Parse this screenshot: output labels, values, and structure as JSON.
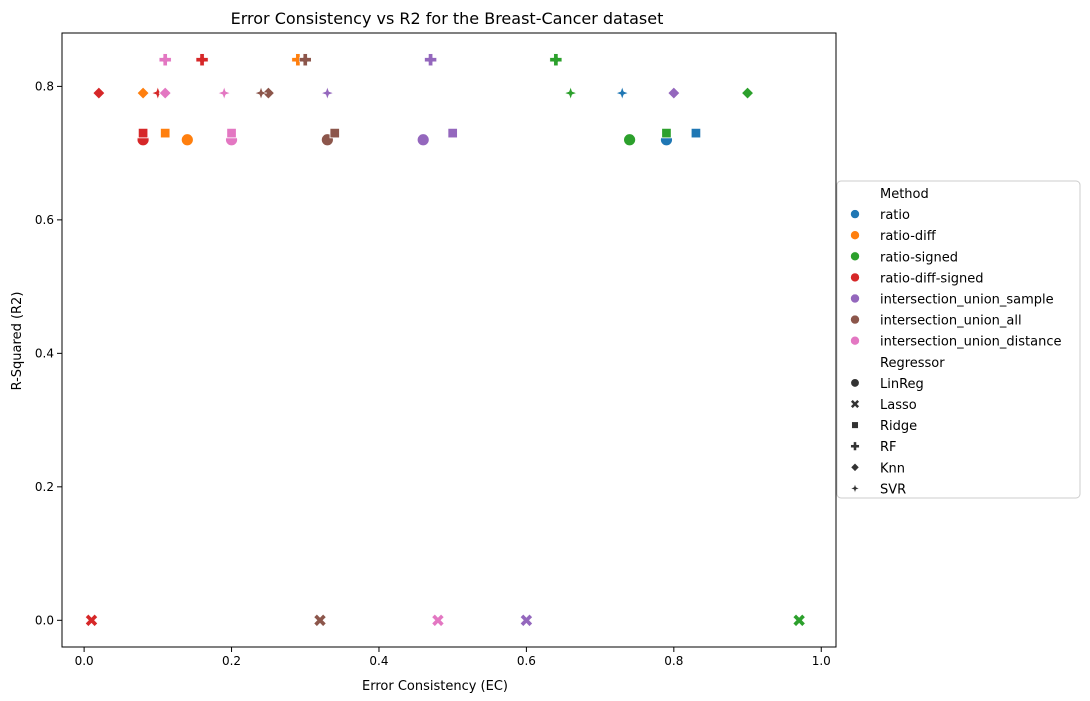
{
  "chart_data": {
    "type": "scatter",
    "title": "Error Consistency vs R2 for the Breast-Cancer dataset",
    "xlabel": "Error Consistency (EC)",
    "ylabel": "R-Squared (R2)",
    "xlim": [
      -0.03,
      1.02
    ],
    "ylim": [
      -0.04,
      0.88
    ],
    "xticks": [
      0.0,
      0.2,
      0.4,
      0.6,
      0.8,
      1.0
    ],
    "xtick_labels": [
      "0.0",
      "0.2",
      "0.4",
      "0.6",
      "0.8",
      "1.0"
    ],
    "yticks": [
      0.0,
      0.2,
      0.4,
      0.6,
      0.8
    ],
    "ytick_labels": [
      "0.0",
      "0.2",
      "0.4",
      "0.6",
      "0.8"
    ],
    "grid": false,
    "legend_position": "right-outside",
    "legend": {
      "method_title": "Method",
      "methods": [
        {
          "name": "ratio",
          "color": "#1f77b4"
        },
        {
          "name": "ratio-diff",
          "color": "#ff7f0e"
        },
        {
          "name": "ratio-signed",
          "color": "#2ca02c"
        },
        {
          "name": "ratio-diff-signed",
          "color": "#d62728"
        },
        {
          "name": "intersection_union_sample",
          "color": "#9467bd"
        },
        {
          "name": "intersection_union_all",
          "color": "#8c564b"
        },
        {
          "name": "intersection_union_distance",
          "color": "#e377c2"
        }
      ],
      "regressor_title": "Regressor",
      "regressors": [
        {
          "name": "LinReg",
          "marker": "circle"
        },
        {
          "name": "Lasso",
          "marker": "x"
        },
        {
          "name": "Ridge",
          "marker": "square"
        },
        {
          "name": "RF",
          "marker": "plus"
        },
        {
          "name": "Knn",
          "marker": "diamond"
        },
        {
          "name": "SVR",
          "marker": "star"
        }
      ]
    },
    "points": [
      {
        "method": "ratio",
        "regressor": "LinReg",
        "x": 0.79,
        "y": 0.72
      },
      {
        "method": "ratio",
        "regressor": "Lasso",
        "x": 0.6,
        "y": 0.0
      },
      {
        "method": "ratio",
        "regressor": "Ridge",
        "x": 0.83,
        "y": 0.73
      },
      {
        "method": "ratio",
        "regressor": "RF",
        "x": 0.3,
        "y": 0.84
      },
      {
        "method": "ratio",
        "regressor": "Knn",
        "x": 0.8,
        "y": 0.79
      },
      {
        "method": "ratio",
        "regressor": "SVR",
        "x": 0.73,
        "y": 0.79
      },
      {
        "method": "ratio-diff",
        "regressor": "LinReg",
        "x": 0.14,
        "y": 0.72
      },
      {
        "method": "ratio-diff",
        "regressor": "Lasso",
        "x": 0.01,
        "y": 0.0
      },
      {
        "method": "ratio-diff",
        "regressor": "Ridge",
        "x": 0.11,
        "y": 0.73
      },
      {
        "method": "ratio-diff",
        "regressor": "RF",
        "x": 0.29,
        "y": 0.84
      },
      {
        "method": "ratio-diff",
        "regressor": "Knn",
        "x": 0.08,
        "y": 0.79
      },
      {
        "method": "ratio-diff",
        "regressor": "SVR",
        "x": 0.1,
        "y": 0.79
      },
      {
        "method": "ratio-signed",
        "regressor": "LinReg",
        "x": 0.74,
        "y": 0.72
      },
      {
        "method": "ratio-signed",
        "regressor": "Lasso",
        "x": 0.97,
        "y": 0.0
      },
      {
        "method": "ratio-signed",
        "regressor": "Ridge",
        "x": 0.79,
        "y": 0.73
      },
      {
        "method": "ratio-signed",
        "regressor": "RF",
        "x": 0.64,
        "y": 0.84
      },
      {
        "method": "ratio-signed",
        "regressor": "Knn",
        "x": 0.9,
        "y": 0.79
      },
      {
        "method": "ratio-signed",
        "regressor": "SVR",
        "x": 0.66,
        "y": 0.79
      },
      {
        "method": "ratio-diff-signed",
        "regressor": "LinReg",
        "x": 0.08,
        "y": 0.72
      },
      {
        "method": "ratio-diff-signed",
        "regressor": "Lasso",
        "x": 0.01,
        "y": 0.0
      },
      {
        "method": "ratio-diff-signed",
        "regressor": "Ridge",
        "x": 0.08,
        "y": 0.73
      },
      {
        "method": "ratio-diff-signed",
        "regressor": "RF",
        "x": 0.16,
        "y": 0.84
      },
      {
        "method": "ratio-diff-signed",
        "regressor": "Knn",
        "x": 0.02,
        "y": 0.79
      },
      {
        "method": "ratio-diff-signed",
        "regressor": "SVR",
        "x": 0.1,
        "y": 0.79
      },
      {
        "method": "intersection_union_sample",
        "regressor": "LinReg",
        "x": 0.46,
        "y": 0.72
      },
      {
        "method": "intersection_union_sample",
        "regressor": "Lasso",
        "x": 0.6,
        "y": 0.0
      },
      {
        "method": "intersection_union_sample",
        "regressor": "Ridge",
        "x": 0.5,
        "y": 0.73
      },
      {
        "method": "intersection_union_sample",
        "regressor": "RF",
        "x": 0.47,
        "y": 0.84
      },
      {
        "method": "intersection_union_sample",
        "regressor": "Knn",
        "x": 0.8,
        "y": 0.79
      },
      {
        "method": "intersection_union_sample",
        "regressor": "SVR",
        "x": 0.33,
        "y": 0.79
      },
      {
        "method": "intersection_union_all",
        "regressor": "LinReg",
        "x": 0.33,
        "y": 0.72
      },
      {
        "method": "intersection_union_all",
        "regressor": "Lasso",
        "x": 0.32,
        "y": 0.0
      },
      {
        "method": "intersection_union_all",
        "regressor": "Ridge",
        "x": 0.34,
        "y": 0.73
      },
      {
        "method": "intersection_union_all",
        "regressor": "RF",
        "x": 0.3,
        "y": 0.84
      },
      {
        "method": "intersection_union_all",
        "regressor": "Knn",
        "x": 0.25,
        "y": 0.79
      },
      {
        "method": "intersection_union_all",
        "regressor": "SVR",
        "x": 0.24,
        "y": 0.79
      },
      {
        "method": "intersection_union_distance",
        "regressor": "LinReg",
        "x": 0.2,
        "y": 0.72
      },
      {
        "method": "intersection_union_distance",
        "regressor": "Lasso",
        "x": 0.48,
        "y": 0.0
      },
      {
        "method": "intersection_union_distance",
        "regressor": "Ridge",
        "x": 0.2,
        "y": 0.73
      },
      {
        "method": "intersection_union_distance",
        "regressor": "RF",
        "x": 0.11,
        "y": 0.84
      },
      {
        "method": "intersection_union_distance",
        "regressor": "Knn",
        "x": 0.11,
        "y": 0.79
      },
      {
        "method": "intersection_union_distance",
        "regressor": "SVR",
        "x": 0.19,
        "y": 0.79
      }
    ]
  }
}
